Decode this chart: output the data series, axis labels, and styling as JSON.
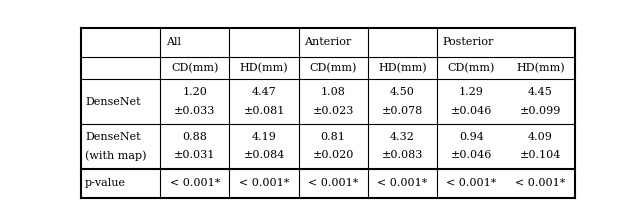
{
  "figsize": [
    6.4,
    2.23
  ],
  "dpi": 100,
  "col_groups": [
    {
      "label": "All",
      "span": 2
    },
    {
      "label": "Anterior",
      "span": 2
    },
    {
      "label": "Posterior",
      "span": 2
    }
  ],
  "subheaders": [
    "CD(mm)",
    "HD(mm)",
    "CD(mm)",
    "HD(mm)",
    "CD(mm)",
    "HD(mm)"
  ],
  "rows": [
    {
      "label": "DenseNet",
      "label2": "",
      "values": [
        "1.20",
        "4.47",
        "1.08",
        "4.50",
        "1.29",
        "4.45"
      ],
      "errors": [
        "±0.033",
        "±0.081",
        "±0.023",
        "±0.078",
        "±0.046",
        "±0.099"
      ]
    },
    {
      "label": "DenseNet",
      "label2": "(with map)",
      "values": [
        "0.88",
        "4.19",
        "0.81",
        "4.32",
        "0.94",
        "4.09"
      ],
      "errors": [
        "±0.031",
        "±0.084",
        "±0.020",
        "±0.083",
        "±0.046",
        "±0.104"
      ]
    },
    {
      "label": "p-value",
      "label2": "",
      "values": [
        "< 0.001*",
        "< 0.001*",
        "< 0.001*",
        "< 0.001*",
        "< 0.001*",
        "< 0.001*"
      ],
      "errors": []
    }
  ],
  "bg_color": "#ffffff",
  "text_color": "#000000",
  "line_color": "#000000",
  "font_size": 8.0
}
